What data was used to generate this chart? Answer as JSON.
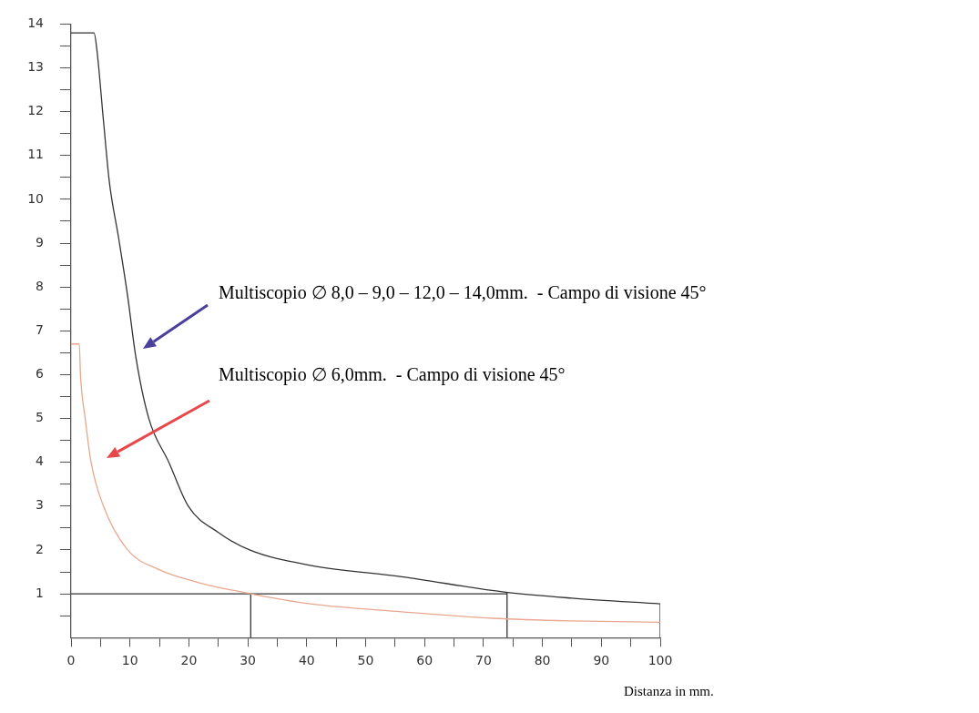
{
  "chart_data": {
    "type": "line",
    "xlabel": "Distanza in mm.",
    "xlim": [
      0,
      100
    ],
    "xticks": [
      0,
      {
        "value": 5,
        "label": null
      },
      10,
      {
        "value": 15,
        "label": null
      },
      20,
      {
        "value": 25,
        "label": null
      },
      30,
      {
        "value": 35,
        "label": null
      },
      40,
      {
        "value": 45,
        "label": null
      },
      50,
      {
        "value": 55,
        "label": null
      },
      60,
      {
        "value": 65,
        "label": null
      },
      70,
      {
        "value": 75,
        "label": null
      },
      80,
      {
        "value": 85,
        "label": null
      },
      90,
      {
        "value": 95,
        "label": null
      },
      100
    ],
    "ylim": [
      0,
      14
    ],
    "yticks": [
      {
        "value": 0.5,
        "label": null
      },
      1,
      {
        "value": 1.5,
        "label": null
      },
      2,
      {
        "value": 2.5,
        "label": null
      },
      3,
      {
        "value": 3.5,
        "label": null
      },
      4,
      {
        "value": 4.5,
        "label": null
      },
      5,
      {
        "value": 5.5,
        "label": null
      },
      6,
      {
        "value": 6.5,
        "label": null
      },
      7,
      {
        "value": 7.5,
        "label": null
      },
      8,
      {
        "value": 8.5,
        "label": null
      },
      9,
      {
        "value": 9.5,
        "label": null
      },
      10,
      {
        "value": 10.5,
        "label": null
      },
      11,
      {
        "value": 11.5,
        "label": null
      },
      12,
      {
        "value": 12.5,
        "label": null
      },
      13,
      {
        "value": 13.5,
        "label": null
      },
      14
    ],
    "grid": false,
    "legend": false,
    "marker": "none",
    "line_style": "solid",
    "series": [
      {
        "color": "#333333",
        "x": [
          0,
          3.9,
          4.4,
          5.5,
          6.5,
          8.1,
          9.6,
          11,
          13.2,
          16.6,
          19.9,
          25,
          30.3,
          40.6,
          56.1,
          73.5,
          85,
          100
        ],
        "values": [
          13.8,
          13.8,
          13.4,
          11.8,
          10.4,
          9.1,
          7.8,
          6.4,
          5,
          4,
          3,
          2.4,
          2,
          1.65,
          1.39,
          1.04,
          0.9,
          0.77
        ]
      },
      {
        "color": "#e8a890",
        "x": [
          0,
          1.4,
          1.6,
          2.4,
          3.4,
          5.5,
          9.6,
          14.8,
          21.5,
          30.5,
          40.6,
          56.1,
          71.6,
          85,
          100
        ],
        "values": [
          6.7,
          6.7,
          6,
          5,
          4,
          3,
          2,
          1.56,
          1.26,
          1,
          0.77,
          0.59,
          0.44,
          0.38,
          0.35
        ]
      },
      {
        "color": "#333333",
        "x": [
          0,
          74
        ],
        "values": [
          1,
          1
        ]
      },
      {
        "color": "#333333",
        "x": [
          30.5,
          30.5
        ],
        "values": [
          0,
          1
        ]
      },
      {
        "color": "#333333",
        "x": [
          74,
          74
        ],
        "values": [
          0,
          1.04
        ]
      },
      {
        "color": "#333333",
        "x": [
          100,
          100
        ],
        "values": [
          0,
          0.77
        ]
      }
    ],
    "annotations": [
      "Multiscopio ∅ 8,0 – 9,0 – 12,0 – 14,0mm.  - Campo di visione 45°",
      "Multiscopio ∅ 6,0mm.  - Campo di visione 45°"
    ]
  }
}
